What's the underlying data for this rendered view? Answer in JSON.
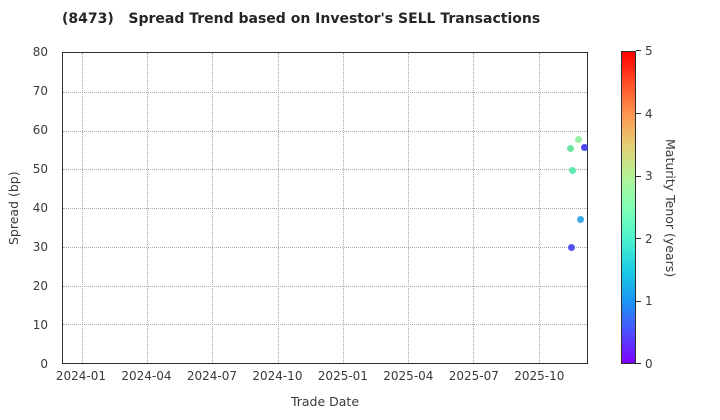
{
  "figure": {
    "title": "(8473)   Spread Trend based on Investor's SELL Transactions"
  },
  "colors": {
    "background": "#ffffff",
    "spine": "#2e2e2e",
    "grid": "#ababab",
    "tick_label": "#3a3a3a",
    "title": "#262626"
  },
  "chart_data": {
    "type": "scatter",
    "title": "(8473)   Spread Trend based on Investor's SELL Transactions",
    "xlabel": "Trade Date",
    "ylabel": "Spread (bp)",
    "grid": true,
    "grid_style": "dotted",
    "ylim": [
      0,
      80
    ],
    "y_ticks": [
      0,
      10,
      20,
      30,
      40,
      50,
      60,
      70,
      80
    ],
    "xlim": [
      "2023-12-05",
      "2025-12-08"
    ],
    "x_ticks": [
      "2024-01",
      "2024-04",
      "2024-07",
      "2024-10",
      "2025-01",
      "2025-04",
      "2025-07",
      "2025-10"
    ],
    "points": [
      {
        "date": "2025-11-16",
        "spread_bp": 55.4,
        "tenor_years": 2.4,
        "color": "#5FE39B"
      },
      {
        "date": "2025-11-17",
        "spread_bp": 29.9,
        "tenor_years": 0.45,
        "color": "#4443EF"
      },
      {
        "date": "2025-11-18",
        "spread_bp": 49.6,
        "tenor_years": 2.2,
        "color": "#4FE8A8"
      },
      {
        "date": "2025-11-26",
        "spread_bp": 57.7,
        "tenor_years": 2.9,
        "color": "#90EC9A"
      },
      {
        "date": "2025-11-30",
        "spread_bp": 37.1,
        "tenor_years": 1.3,
        "color": "#2EA2E9"
      },
      {
        "date": "2025-12-05",
        "spread_bp": 55.6,
        "tenor_years": 0.4,
        "color": "#3C3CF0"
      }
    ],
    "colorbar": {
      "label": "Maturity Tenor (years)",
      "range": [
        0,
        5
      ],
      "ticks": [
        0,
        1,
        2,
        3,
        4,
        5
      ],
      "colormap": "rainbow",
      "gradient_stops": [
        "#8000FF",
        "#4D4FFC",
        "#1A96F3",
        "#1ACEE3",
        "#4DF3CE",
        "#80FFB5",
        "#B3F396",
        "#E6CE74",
        "#FF964F",
        "#FF4F28",
        "#FF0000"
      ],
      "legend_position": "right"
    }
  }
}
